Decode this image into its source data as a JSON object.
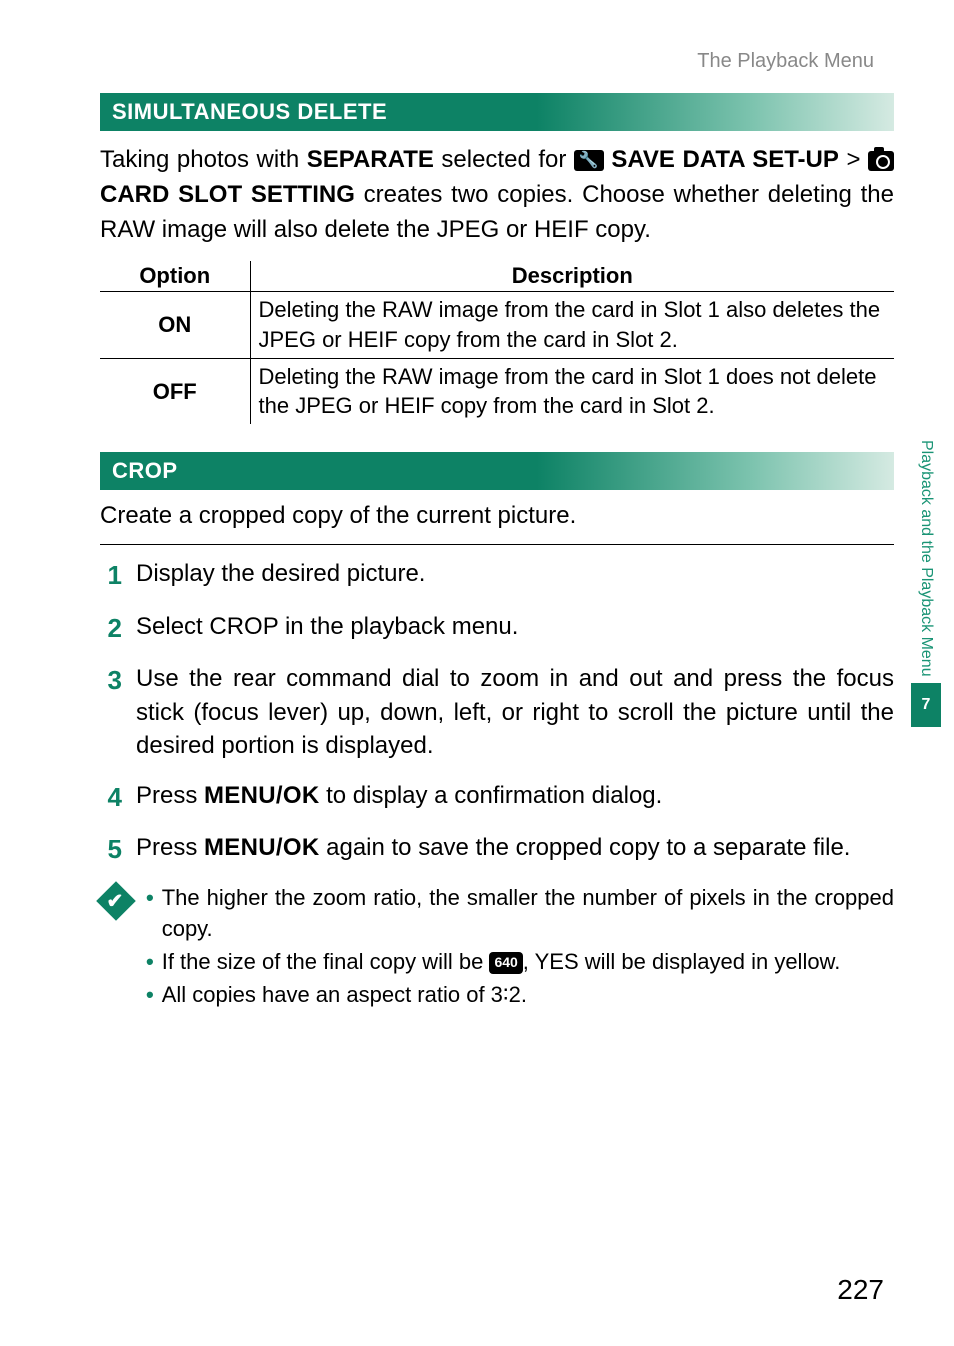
{
  "header": {
    "breadcrumb": "The Playback Menu"
  },
  "sidebar": {
    "label": "Playback and the Playback Menu",
    "tab": "7"
  },
  "section1": {
    "title": "SIMULTANEOUS DELETE",
    "intro_1": "Taking photos with ",
    "intro_sep": "SEPARATE",
    "intro_2": " selected for ",
    "intro_save": " SAVE DATA SET-UP",
    "intro_3": " > ",
    "intro_card": " CARD SLOT SETTING",
    "intro_4": " creates two copies. Choose whether deleting the RAW image will also delete the JPEG or HEIF copy.",
    "table": {
      "h1": "Option",
      "h2": "Description",
      "r1o": "ON",
      "r1d": "Deleting the RAW image from the card in Slot 1 also deletes the JPEG or HEIF copy from the card in Slot 2.",
      "r2o": "OFF",
      "r2d": "Deleting the RAW image from the card in Slot 1 does not delete the JPEG or HEIF copy from the card in Slot 2."
    }
  },
  "section2": {
    "title": "CROP",
    "intro": "Create a cropped copy of the current picture.",
    "steps": {
      "s1n": "1",
      "s1": "Display the desired picture.",
      "s2n": "2",
      "s2a": "Select ",
      "s2b": "CROP",
      "s2c": " in the playback menu.",
      "s3n": "3",
      "s3": "Use the rear command dial to zoom in and out and press the focus stick (focus lever) up, down, left, or right to scroll the picture until the desired portion is displayed.",
      "s4n": "4",
      "s4a": "Press ",
      "s4b": "MENU/OK",
      "s4c": " to display a confirmation dialog.",
      "s5n": "5",
      "s5a": "Press ",
      "s5b": "MENU/OK",
      "s5c": " again to save the cropped copy to a separate file."
    },
    "notes": {
      "n1": "The higher the zoom ratio, the smaller the number of pixels in the cropped copy.",
      "n2a": "If the size of the final copy will be ",
      "n2icon": "640",
      "n2b": ", ",
      "n2yes": "YES",
      "n2c": " will be displayed in yellow.",
      "n3": "All copies have an aspect ratio of 3∶2."
    }
  },
  "pageNumber": "227"
}
